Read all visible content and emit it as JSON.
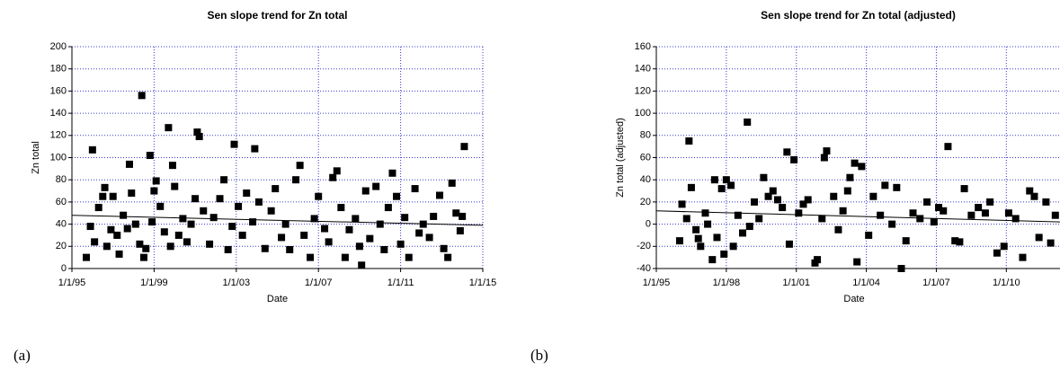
{
  "chart_data": [
    {
      "type": "scatter",
      "title": "Sen slope trend for Zn total",
      "x_label": "Date",
      "y_label": "Zn total",
      "caption": "(a)",
      "xlim": [
        1995,
        2015
      ],
      "ylim": [
        0,
        200
      ],
      "xticks": [
        {
          "value": 1995,
          "label": "1/1/95"
        },
        {
          "value": 1999,
          "label": "1/1/99"
        },
        {
          "value": 2003,
          "label": "1/1/03"
        },
        {
          "value": 2007,
          "label": "1/1/07"
        },
        {
          "value": 2011,
          "label": "1/1/11"
        },
        {
          "value": 2015,
          "label": "1/1/15"
        }
      ],
      "yticks": [
        0,
        20,
        40,
        60,
        80,
        100,
        120,
        140,
        160,
        180,
        200
      ],
      "grid": true,
      "series": [
        {
          "color": "#000000",
          "x": [
            1995.7,
            1995.9,
            1996.0,
            1996.1,
            1996.3,
            1996.5,
            1996.6,
            1996.7,
            1996.9,
            1997.0,
            1997.2,
            1997.3,
            1997.5,
            1997.7,
            1997.8,
            1997.9,
            1998.1,
            1998.3,
            1998.4,
            1998.5,
            1998.6,
            1998.8,
            1998.9,
            1999.0,
            1999.1,
            1999.3,
            1999.5,
            1999.7,
            1999.8,
            1999.9,
            2000.0,
            2000.2,
            2000.4,
            2000.6,
            2000.8,
            2001.0,
            2001.1,
            2001.2,
            2001.4,
            2001.7,
            2001.9,
            2002.2,
            2002.4,
            2002.6,
            2002.8,
            2002.9,
            2003.1,
            2003.3,
            2003.5,
            2003.8,
            2003.9,
            2004.1,
            2004.4,
            2004.7,
            2004.9,
            2005.2,
            2005.4,
            2005.6,
            2005.9,
            2006.1,
            2006.3,
            2006.6,
            2006.8,
            2007.0,
            2007.3,
            2007.5,
            2007.7,
            2007.9,
            2008.1,
            2008.3,
            2008.5,
            2008.8,
            2009.0,
            2009.1,
            2009.3,
            2009.5,
            2009.8,
            2010.0,
            2010.2,
            2010.4,
            2010.6,
            2010.8,
            2011.0,
            2011.2,
            2011.4,
            2011.7,
            2011.9,
            2012.1,
            2012.4,
            2012.6,
            2012.9,
            2013.1,
            2013.3,
            2013.5,
            2013.7,
            2013.9,
            2014.0,
            2014.1
          ],
          "values": [
            10,
            38,
            107,
            24,
            55,
            65,
            73,
            20,
            35,
            65,
            30,
            13,
            48,
            36,
            94,
            68,
            40,
            22,
            156,
            10,
            18,
            102,
            42,
            70,
            79,
            56,
            33,
            127,
            20,
            93,
            74,
            30,
            45,
            24,
            40,
            63,
            123,
            119,
            52,
            22,
            46,
            63,
            80,
            17,
            38,
            112,
            56,
            30,
            68,
            42,
            108,
            60,
            18,
            52,
            72,
            28,
            40,
            17,
            80,
            93,
            30,
            10,
            45,
            65,
            36,
            24,
            82,
            88,
            55,
            10,
            35,
            45,
            20,
            3,
            70,
            27,
            74,
            40,
            17,
            55,
            86,
            65,
            22,
            46,
            10,
            72,
            32,
            40,
            28,
            47,
            66,
            18,
            10,
            77,
            50,
            34,
            47,
            110
          ]
        }
      ],
      "trend": {
        "x": [
          1995,
          2015
        ],
        "values": [
          48,
          39
        ]
      }
    },
    {
      "type": "scatter",
      "title": "Sen slope trend for Zn total (adjusted)",
      "x_label": "Date",
      "y_label": "Zn total (adjusted)",
      "caption": "(b)",
      "xlim": [
        1995,
        2012.3
      ],
      "ylim": [
        -40,
        160
      ],
      "xticks": [
        {
          "value": 1995,
          "label": "1/1/95"
        },
        {
          "value": 1998,
          "label": "1/1/98"
        },
        {
          "value": 2001,
          "label": "1/1/01"
        },
        {
          "value": 2004,
          "label": "1/1/04"
        },
        {
          "value": 2007,
          "label": "1/1/07"
        },
        {
          "value": 2010,
          "label": "1/1/10"
        }
      ],
      "yticks": [
        -40,
        -20,
        0,
        20,
        40,
        60,
        80,
        100,
        120,
        140,
        160
      ],
      "grid": true,
      "series": [
        {
          "color": "#000000",
          "x": [
            1996.0,
            1996.1,
            1996.3,
            1996.4,
            1996.5,
            1996.7,
            1996.8,
            1996.9,
            1997.1,
            1997.2,
            1997.4,
            1997.5,
            1997.6,
            1997.8,
            1997.9,
            1998.0,
            1998.2,
            1998.3,
            1998.5,
            1998.7,
            1998.9,
            1999.0,
            1999.2,
            1999.4,
            1999.6,
            1999.8,
            2000.0,
            2000.2,
            2000.4,
            2000.6,
            2000.7,
            2000.9,
            2001.1,
            2001.3,
            2001.5,
            2001.8,
            2001.9,
            2002.1,
            2002.2,
            2002.3,
            2002.6,
            2002.8,
            2003.0,
            2003.2,
            2003.3,
            2003.5,
            2003.6,
            2003.8,
            2004.1,
            2004.3,
            2004.6,
            2004.8,
            2005.1,
            2005.3,
            2005.5,
            2005.7,
            2006.0,
            2006.3,
            2006.6,
            2006.9,
            2007.1,
            2007.3,
            2007.5,
            2007.8,
            2008.0,
            2008.2,
            2008.5,
            2008.8,
            2009.1,
            2009.3,
            2009.6,
            2009.9,
            2010.1,
            2010.4,
            2010.7,
            2011.0,
            2011.2,
            2011.4,
            2011.7,
            2011.9,
            2012.1
          ],
          "values": [
            -15,
            18,
            5,
            75,
            33,
            -5,
            -13,
            -20,
            10,
            0,
            -32,
            40,
            -12,
            32,
            -27,
            40,
            35,
            -20,
            8,
            -8,
            92,
            -2,
            20,
            5,
            42,
            25,
            30,
            22,
            15,
            65,
            -18,
            58,
            10,
            18,
            22,
            -35,
            -32,
            5,
            60,
            66,
            25,
            -5,
            12,
            30,
            42,
            55,
            -34,
            52,
            -10,
            25,
            8,
            35,
            0,
            33,
            -40,
            -15,
            10,
            5,
            20,
            2,
            15,
            12,
            70,
            -15,
            -16,
            32,
            8,
            15,
            10,
            20,
            -26,
            -20,
            10,
            5,
            -30,
            30,
            25,
            -12,
            20,
            -17,
            8
          ]
        }
      ],
      "trend": {
        "x": [
          1995,
          2012.3
        ],
        "values": [
          12,
          2
        ]
      }
    }
  ]
}
